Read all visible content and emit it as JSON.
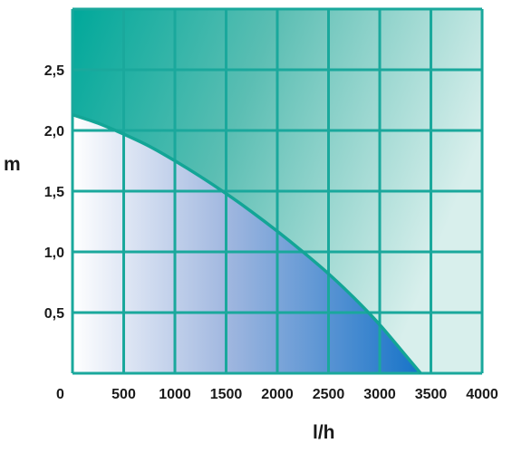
{
  "chart_data": {
    "type": "area",
    "xlabel": "l/h",
    "ylabel": "m",
    "xlim": [
      0,
      4000
    ],
    "ylim": [
      0,
      3.0
    ],
    "x_ticks": [
      "500",
      "1000",
      "1500",
      "2000",
      "2500",
      "3000",
      "3500",
      "4000"
    ],
    "x_tick_values": [
      500,
      1000,
      1500,
      2000,
      2500,
      3000,
      3500,
      4000
    ],
    "y_ticks": [
      "0,5",
      "1,0",
      "1,5",
      "2,0",
      "2,5"
    ],
    "y_tick_values": [
      0.5,
      1.0,
      1.5,
      2.0,
      2.5
    ],
    "origin_label": "0",
    "grid": true,
    "series": [
      {
        "x": [
          0,
          250,
          500,
          750,
          1000,
          1250,
          1500,
          1750,
          2000,
          2250,
          2500,
          2750,
          3000,
          3250,
          3400
        ],
        "values": [
          2.13,
          2.06,
          1.97,
          1.87,
          1.75,
          1.62,
          1.48,
          1.33,
          1.17,
          1.0,
          0.82,
          0.62,
          0.4,
          0.15,
          0.0
        ]
      }
    ],
    "colors": {
      "grid": "#1aa89c",
      "curve": "#13a596",
      "upper_fill_start": "#00a89a",
      "upper_fill_end": "#d8efec",
      "lower_fill_start": "#ffffff",
      "lower_fill_end": "#1673c8"
    }
  }
}
